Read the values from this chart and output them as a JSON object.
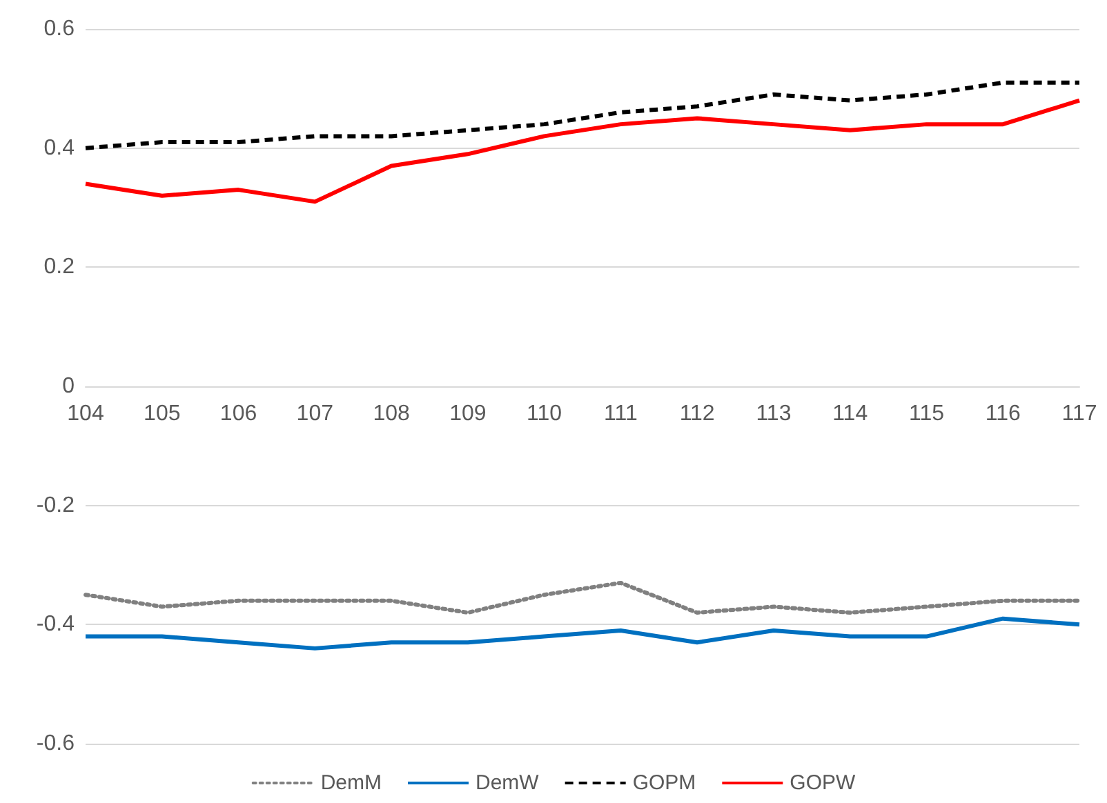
{
  "chart_data": {
    "type": "line",
    "categories": [
      "104",
      "105",
      "106",
      "107",
      "108",
      "109",
      "110",
      "111",
      "112",
      "113",
      "114",
      "115",
      "116",
      "117"
    ],
    "ylim": [
      -0.6,
      0.6
    ],
    "yticks": [
      -0.6,
      -0.4,
      -0.2,
      0,
      0.2,
      0.4,
      0.6
    ],
    "grid": "y",
    "legend": "bottom",
    "marker": "none",
    "series": [
      {
        "name": "DemM",
        "color": "#808080",
        "line_style": "dotted",
        "values": [
          -0.35,
          -0.37,
          -0.36,
          -0.36,
          -0.36,
          -0.38,
          -0.35,
          -0.33,
          -0.38,
          -0.37,
          -0.38,
          -0.37,
          -0.36,
          -0.36
        ]
      },
      {
        "name": "DemW",
        "color": "#0070c0",
        "line_style": "solid",
        "values": [
          -0.42,
          -0.42,
          -0.43,
          -0.44,
          -0.43,
          -0.43,
          -0.42,
          -0.41,
          -0.43,
          -0.41,
          -0.42,
          -0.42,
          -0.39,
          -0.4
        ]
      },
      {
        "name": "GOPM",
        "color": "#000000",
        "line_style": "dashed",
        "values": [
          0.4,
          0.41,
          0.41,
          0.42,
          0.42,
          0.43,
          0.44,
          0.46,
          0.47,
          0.49,
          0.48,
          0.49,
          0.51,
          0.51
        ]
      },
      {
        "name": "GOPW",
        "color": "#ff0000",
        "line_style": "solid",
        "values": [
          0.34,
          0.32,
          0.33,
          0.31,
          0.37,
          0.39,
          0.42,
          0.44,
          0.45,
          0.44,
          0.43,
          0.44,
          0.44,
          0.48
        ]
      }
    ]
  }
}
